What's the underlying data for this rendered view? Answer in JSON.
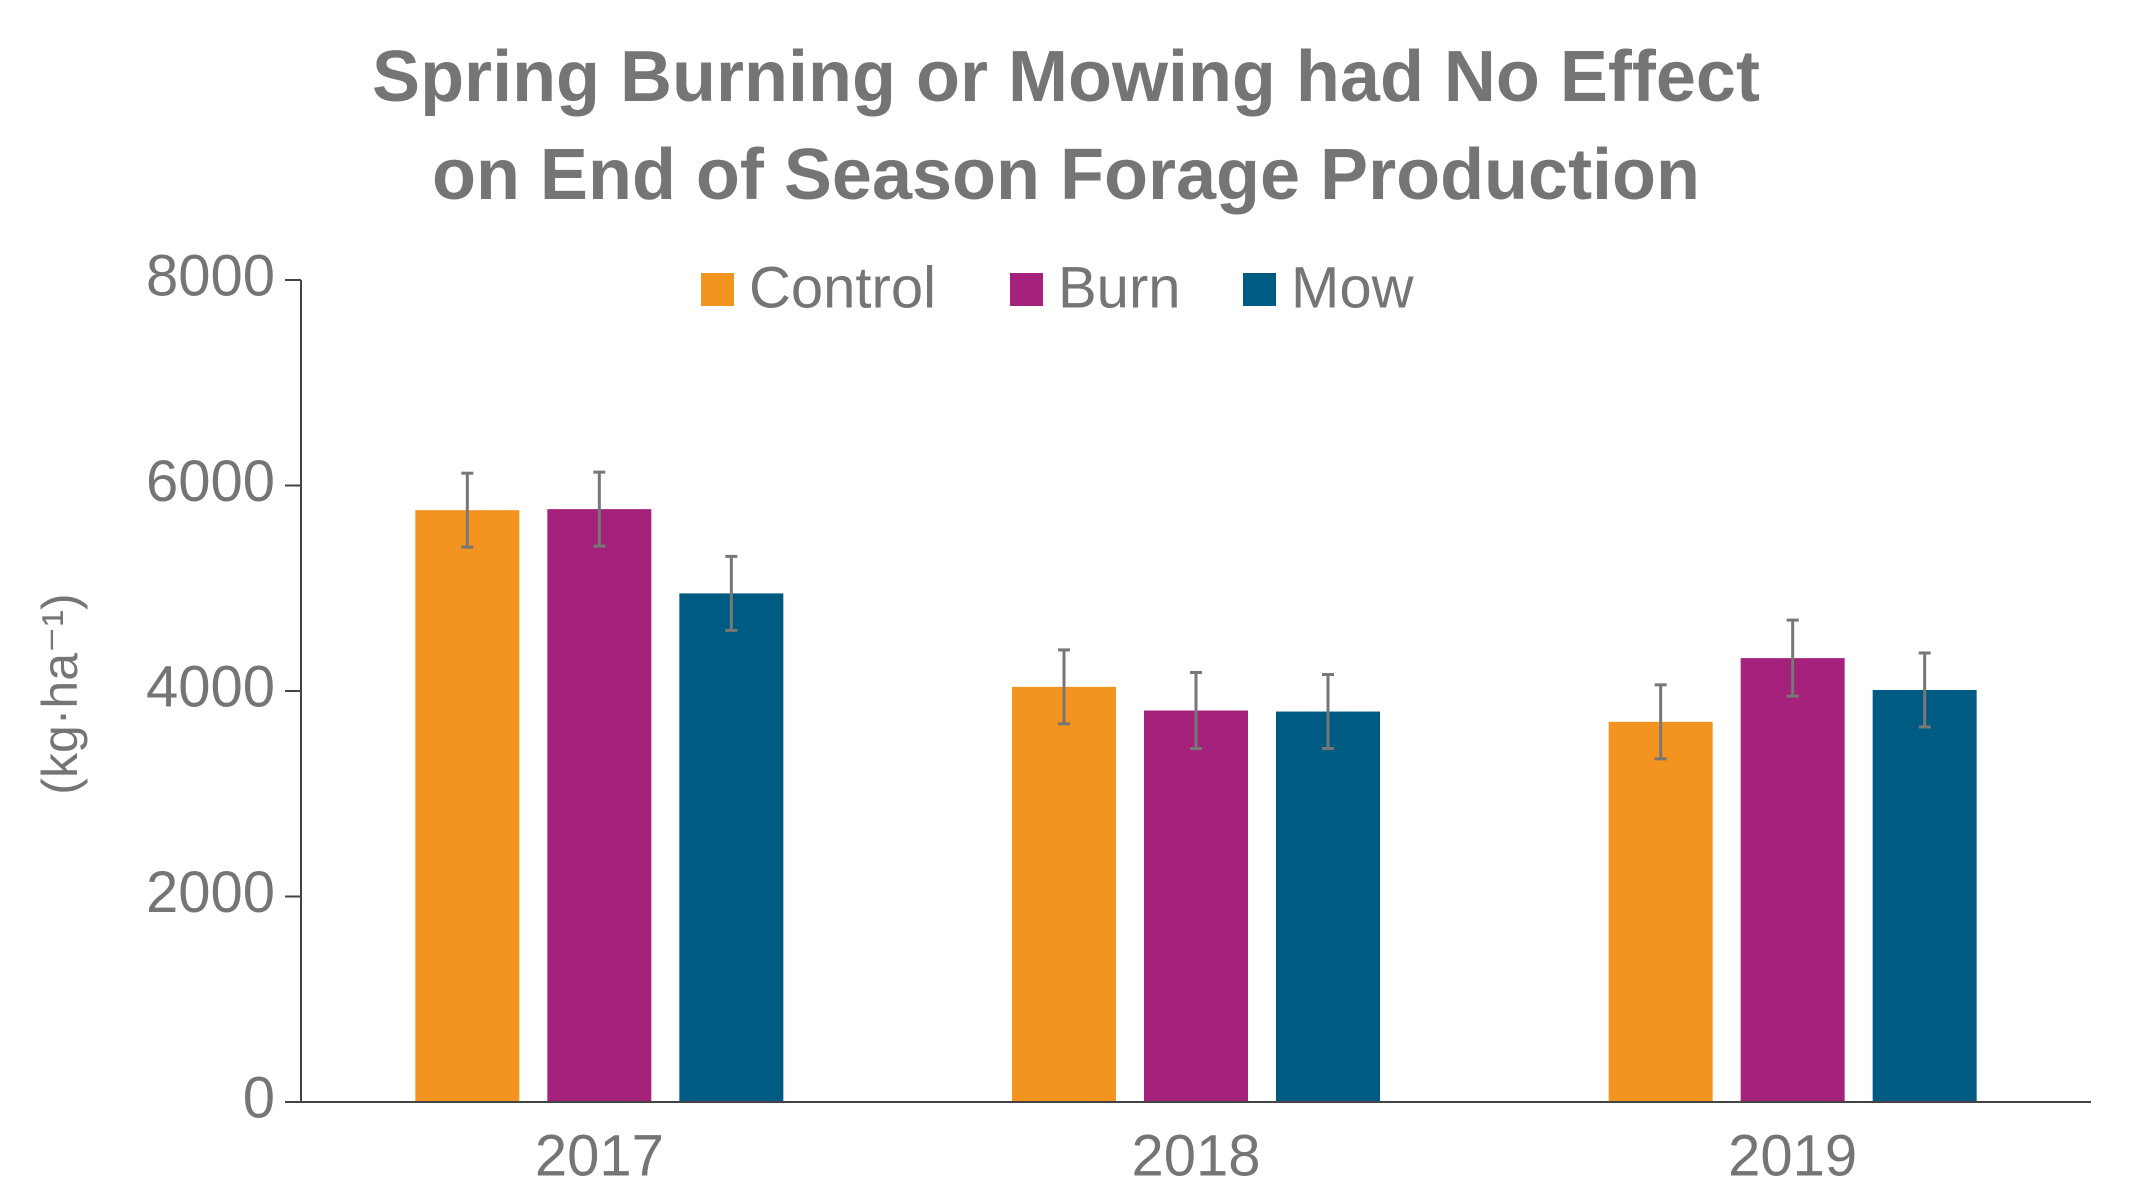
{
  "chart_data": {
    "type": "bar",
    "title": [
      "Spring Burning or Mowing had No Effect",
      "on End of Season Forage Production"
    ],
    "y_label": "(kg·ha⁻¹)",
    "categories": [
      "2017",
      "2018",
      "2019"
    ],
    "series": [
      {
        "name": "Control",
        "color": "#f39320",
        "values": [
          5760,
          4040,
          3700
        ],
        "errors": [
          360,
          360,
          360
        ]
      },
      {
        "name": "Burn",
        "color": "#a4217c",
        "values": [
          5770,
          3810,
          4320
        ],
        "errors": [
          360,
          370,
          370
        ]
      },
      {
        "name": "Mow",
        "color": "#005b82",
        "values": [
          4950,
          3800,
          4010
        ],
        "errors": [
          360,
          360,
          360
        ]
      }
    ],
    "ylim": [
      0,
      8000
    ],
    "yticks": [
      0,
      2000,
      4000,
      6000,
      8000
    ],
    "grid": false,
    "legend": "top"
  }
}
